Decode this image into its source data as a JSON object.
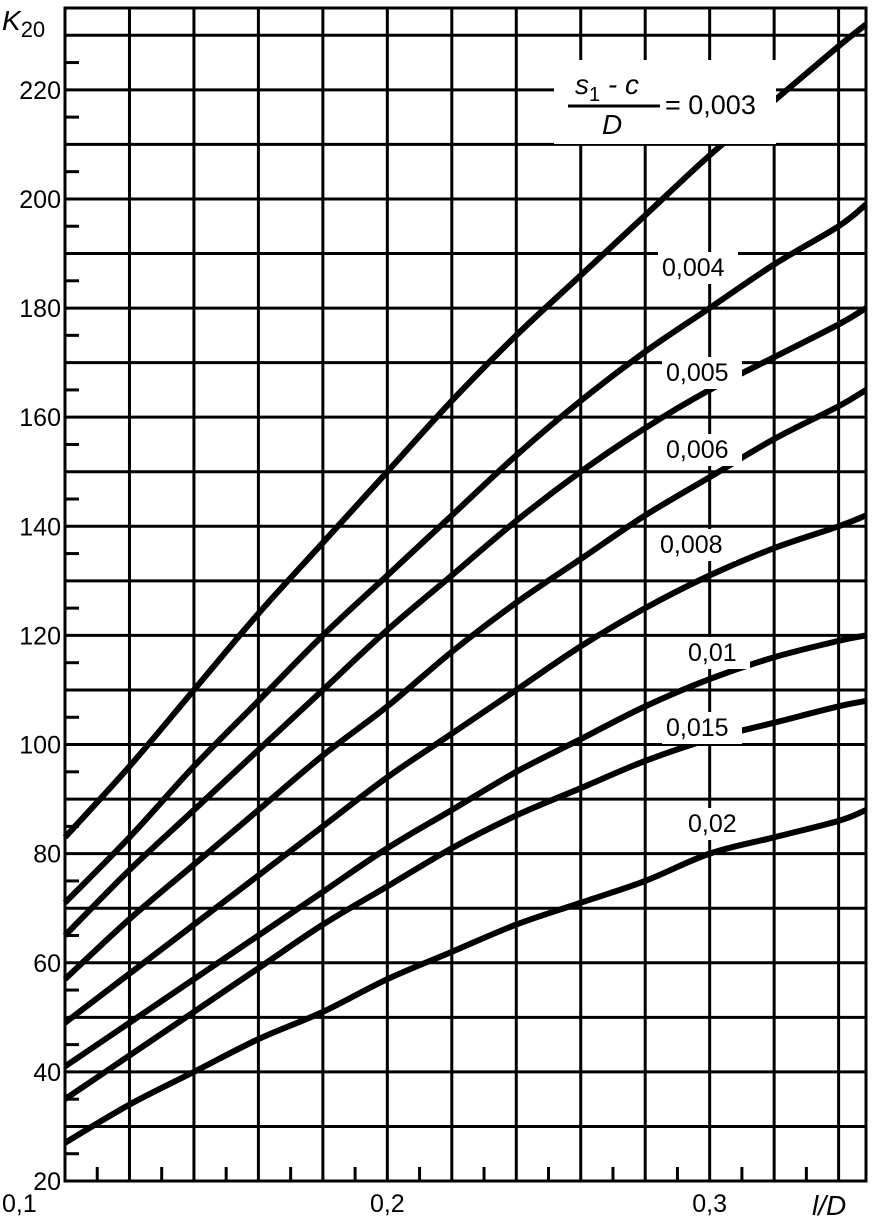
{
  "chart_data": {
    "type": "line",
    "ylabel": "K",
    "ylabel_sub": "20",
    "xlabel": "l/D",
    "xlim": [
      0.1,
      0.3485
    ],
    "ylim": [
      20,
      235
    ],
    "x_ticks": [
      0.1,
      0.2,
      0.3
    ],
    "x_tick_labels": [
      "0,1",
      "0,2",
      "0,3"
    ],
    "y_ticks": [
      20,
      40,
      60,
      80,
      100,
      120,
      140,
      160,
      180,
      200,
      220
    ],
    "y_tick_labels": [
      "20",
      "40",
      "60",
      "80",
      "100",
      "120",
      "140",
      "160",
      "180",
      "200",
      "220"
    ],
    "grid": true,
    "parameter_label": {
      "numerator_s": "s",
      "numerator_sub": "1",
      "numerator_rest": " - c",
      "denominator": "D",
      "equals": "= 0,003"
    },
    "series": [
      {
        "name": "0,003",
        "label": "",
        "x": [
          0.1,
          0.12,
          0.14,
          0.16,
          0.18,
          0.2,
          0.22,
          0.24,
          0.26,
          0.28,
          0.3,
          0.32,
          0.34,
          0.3485
        ],
        "y": [
          83,
          96,
          110,
          124,
          137,
          150,
          163,
          175,
          186,
          197,
          208,
          218,
          228,
          232
        ]
      },
      {
        "name": "0,004",
        "label": "0,004",
        "x": [
          0.1,
          0.12,
          0.14,
          0.16,
          0.18,
          0.2,
          0.22,
          0.24,
          0.26,
          0.28,
          0.3,
          0.32,
          0.34,
          0.3485
        ],
        "y": [
          71,
          83,
          96,
          108,
          120,
          131,
          142,
          153,
          163,
          172,
          180,
          188,
          195,
          199
        ]
      },
      {
        "name": "0,005",
        "label": "0,005",
        "x": [
          0.1,
          0.12,
          0.14,
          0.16,
          0.18,
          0.2,
          0.22,
          0.24,
          0.26,
          0.28,
          0.3,
          0.32,
          0.34,
          0.3485
        ],
        "y": [
          65,
          77,
          88,
          99,
          110,
          121,
          131,
          141,
          150,
          158,
          165,
          171,
          177,
          180
        ]
      },
      {
        "name": "0,006",
        "label": "0,006",
        "x": [
          0.1,
          0.12,
          0.14,
          0.16,
          0.18,
          0.2,
          0.22,
          0.24,
          0.26,
          0.28,
          0.3,
          0.32,
          0.34,
          0.3485
        ],
        "y": [
          57,
          68,
          78,
          88,
          98,
          107,
          117,
          126,
          134,
          142,
          149,
          156,
          162,
          165
        ]
      },
      {
        "name": "0,008",
        "label": "0,008",
        "x": [
          0.1,
          0.12,
          0.14,
          0.16,
          0.18,
          0.2,
          0.22,
          0.24,
          0.26,
          0.28,
          0.3,
          0.32,
          0.34,
          0.3485
        ],
        "y": [
          49,
          58,
          67,
          76,
          85,
          94,
          102,
          110,
          118,
          125,
          131,
          136,
          140,
          142
        ]
      },
      {
        "name": "0,01",
        "label": "0,01",
        "x": [
          0.1,
          0.12,
          0.14,
          0.16,
          0.18,
          0.2,
          0.22,
          0.24,
          0.26,
          0.28,
          0.3,
          0.32,
          0.34,
          0.3485
        ],
        "y": [
          41,
          49,
          57,
          65,
          73,
          81,
          88,
          95,
          101,
          107,
          112,
          116,
          119,
          120
        ]
      },
      {
        "name": "0,015",
        "label": "0,015",
        "x": [
          0.1,
          0.12,
          0.14,
          0.16,
          0.18,
          0.2,
          0.22,
          0.24,
          0.26,
          0.28,
          0.3,
          0.32,
          0.34,
          0.3485
        ],
        "y": [
          35,
          43,
          51,
          59,
          67,
          74,
          81,
          87,
          92,
          97,
          101,
          104,
          107,
          108
        ]
      },
      {
        "name": "0,02",
        "label": "0,02",
        "x": [
          0.1,
          0.12,
          0.14,
          0.16,
          0.18,
          0.2,
          0.22,
          0.24,
          0.26,
          0.28,
          0.3,
          0.32,
          0.34,
          0.3485
        ],
        "y": [
          27,
          34,
          40,
          46,
          51,
          57,
          62,
          67,
          71,
          75,
          80,
          83,
          86,
          88
        ]
      }
    ]
  }
}
